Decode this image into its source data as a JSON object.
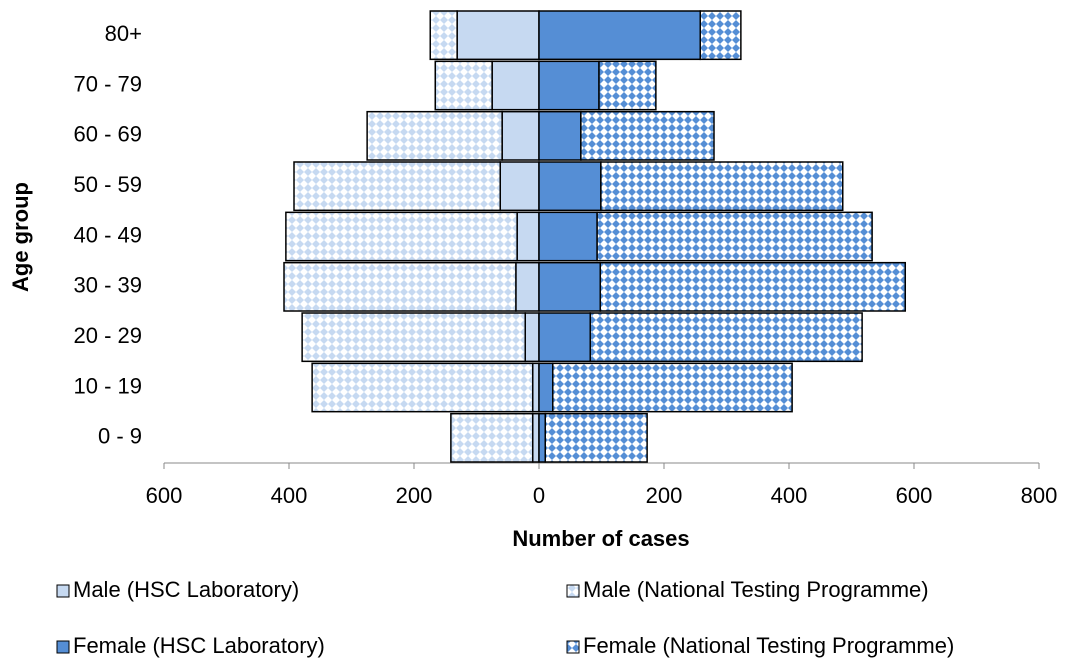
{
  "chart_data": {
    "type": "bar",
    "orientation": "horizontal",
    "stacked": true,
    "xlabel": "Number of cases",
    "ylabel": "Age group",
    "categories": [
      "0 - 9",
      "10 - 19",
      "20 - 29",
      "30 - 39",
      "40 - 49",
      "50 - 59",
      "60 - 69",
      "70 - 79",
      "80+"
    ],
    "series": [
      {
        "name": "Male (HSC Laboratory)",
        "color": "#c6d9f1",
        "values": [
          -10,
          -10,
          -22,
          -37,
          -35,
          -62,
          -59,
          -75,
          -131
        ]
      },
      {
        "name": "Male (National Testing Programme)",
        "color": "#c6d9f1",
        "pattern": "checker",
        "values": [
          -131,
          -353,
          -357,
          -371,
          -370,
          -330,
          -216,
          -91,
          -43
        ]
      },
      {
        "name": "Female (HSC Laboratory)",
        "color": "#558ed5",
        "values": [
          10,
          22,
          82,
          98,
          93,
          99,
          67,
          96,
          258
        ]
      },
      {
        "name": "Female (National Testing Programme)",
        "color": "#558ed5",
        "pattern": "checker",
        "values": [
          163,
          383,
          435,
          488,
          440,
          387,
          213,
          91,
          65
        ]
      }
    ],
    "xlim": [
      -600,
      800
    ],
    "xticks": [
      {
        "value": -600,
        "label": "600"
      },
      {
        "value": -400,
        "label": "400"
      },
      {
        "value": -200,
        "label": "200"
      },
      0,
      200,
      400,
      600,
      800
    ]
  }
}
